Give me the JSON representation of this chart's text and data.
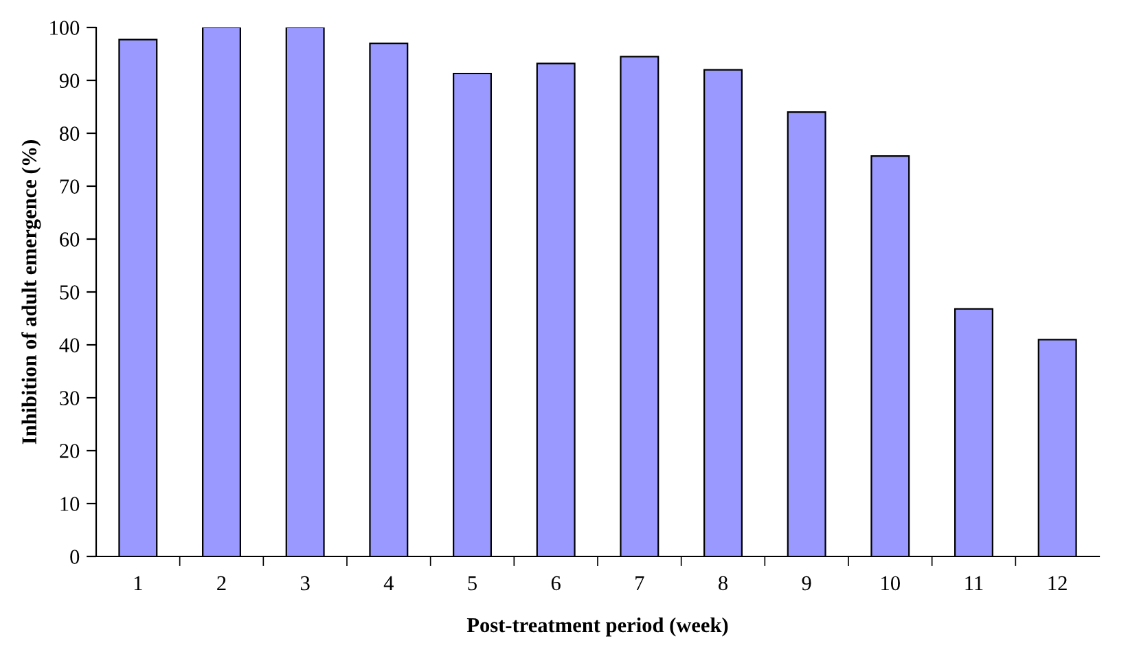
{
  "chart_data": {
    "type": "bar",
    "xlabel": "Post-treatment period (week)",
    "ylabel": "Inhibition of adult emergence (%)",
    "categories": [
      "1",
      "2",
      "3",
      "4",
      "5",
      "6",
      "7",
      "8",
      "9",
      "10",
      "11",
      "12"
    ],
    "values": [
      97.7,
      100,
      100,
      97,
      91.3,
      93.2,
      94.5,
      92,
      84,
      75.7,
      46.8,
      41
    ],
    "color": "#9999ff",
    "ylim": [
      0,
      100
    ],
    "yticks": [
      0,
      10,
      20,
      30,
      40,
      50,
      60,
      70,
      80,
      90,
      100
    ],
    "grid": false
  }
}
